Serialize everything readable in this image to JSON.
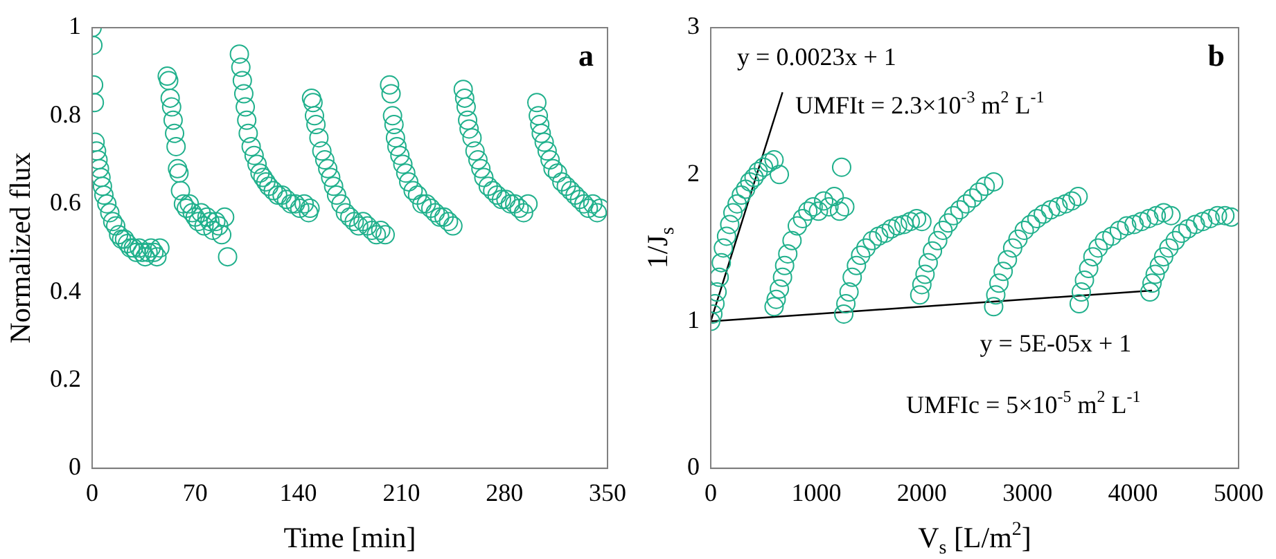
{
  "chart_data": [
    {
      "type": "scatter",
      "xlabel": "Time [min]",
      "ylabel": "Normalized flux",
      "annotations": [
        "a"
      ],
      "xlim": [
        0,
        350
      ],
      "xticks": [
        0,
        70,
        140,
        210,
        280,
        350
      ],
      "ylim": [
        0,
        1
      ],
      "yticks": [
        0,
        0.2,
        0.4,
        0.6,
        0.8,
        1
      ],
      "grid": false,
      "legend": false,
      "marker": "circle",
      "series": [
        {
          "color": "#20b08c",
          "x": [
            0,
            0.5,
            1,
            1.5,
            2,
            3,
            4,
            5,
            6,
            7,
            8,
            10,
            12,
            14,
            16,
            18,
            20,
            22,
            24,
            26,
            28,
            30,
            32,
            34,
            36,
            38,
            40,
            42,
            44,
            46,
            51,
            52,
            53,
            54,
            55,
            56,
            57,
            58,
            59,
            60,
            62,
            64,
            66,
            68,
            70,
            72,
            74,
            76,
            78,
            80,
            82,
            84,
            86,
            88,
            90,
            92,
            100,
            101,
            102,
            103,
            104,
            105,
            106,
            108,
            110,
            112,
            114,
            116,
            118,
            120,
            123,
            126,
            129,
            132,
            135,
            138,
            141,
            144,
            147,
            148,
            149,
            150,
            151,
            152,
            154,
            156,
            158,
            160,
            162,
            164,
            166,
            169,
            172,
            175,
            178,
            181,
            184,
            187,
            190,
            193,
            196,
            199,
            202,
            203,
            204,
            205,
            206,
            207,
            209,
            211,
            213,
            215,
            218,
            221,
            224,
            227,
            230,
            233,
            236,
            239,
            242,
            245,
            252,
            253,
            254,
            255,
            256,
            258,
            260,
            262,
            264,
            266,
            269,
            272,
            275,
            278,
            281,
            284,
            287,
            290,
            293,
            296,
            302,
            303,
            304,
            305,
            307,
            309,
            311,
            313,
            316,
            319,
            322,
            325,
            328,
            331,
            334,
            337,
            340,
            343,
            345
          ],
          "values": [
            1.0,
            0.96,
            0.87,
            0.83,
            0.74,
            0.72,
            0.7,
            0.68,
            0.66,
            0.64,
            0.62,
            0.6,
            0.58,
            0.56,
            0.55,
            0.53,
            0.52,
            0.52,
            0.51,
            0.5,
            0.5,
            0.49,
            0.5,
            0.49,
            0.48,
            0.49,
            0.5,
            0.49,
            0.48,
            0.5,
            0.89,
            0.88,
            0.84,
            0.82,
            0.79,
            0.76,
            0.73,
            0.68,
            0.67,
            0.63,
            0.6,
            0.59,
            0.6,
            0.58,
            0.57,
            0.56,
            0.58,
            0.55,
            0.57,
            0.56,
            0.54,
            0.56,
            0.55,
            0.53,
            0.57,
            0.48,
            0.94,
            0.91,
            0.88,
            0.85,
            0.82,
            0.79,
            0.76,
            0.73,
            0.71,
            0.69,
            0.67,
            0.66,
            0.65,
            0.64,
            0.63,
            0.62,
            0.62,
            0.61,
            0.6,
            0.6,
            0.59,
            0.6,
            0.58,
            0.59,
            0.84,
            0.83,
            0.8,
            0.78,
            0.75,
            0.72,
            0.7,
            0.68,
            0.66,
            0.64,
            0.62,
            0.6,
            0.58,
            0.57,
            0.56,
            0.55,
            0.56,
            0.55,
            0.54,
            0.53,
            0.54,
            0.53,
            0.87,
            0.85,
            0.8,
            0.78,
            0.75,
            0.73,
            0.71,
            0.69,
            0.67,
            0.65,
            0.63,
            0.62,
            0.6,
            0.6,
            0.59,
            0.58,
            0.57,
            0.57,
            0.56,
            0.55,
            0.86,
            0.84,
            0.82,
            0.79,
            0.77,
            0.75,
            0.72,
            0.7,
            0.68,
            0.66,
            0.64,
            0.63,
            0.62,
            0.61,
            0.61,
            0.6,
            0.6,
            0.59,
            0.58,
            0.6,
            0.83,
            0.8,
            0.78,
            0.76,
            0.74,
            0.72,
            0.7,
            0.68,
            0.67,
            0.65,
            0.64,
            0.63,
            0.62,
            0.61,
            0.6,
            0.59,
            0.6,
            0.58,
            0.59
          ]
        }
      ]
    },
    {
      "type": "scatter",
      "xlabel": "V$_{s}$ [L/m$^{2}$]",
      "ylabel": "1/J$_{s}$",
      "annotations": [
        "b",
        "y = 0.0023x + 1",
        "UMFIt = 2.3×10$^{-3}$ m$^{2}$ L$^{-1}$",
        "y = 5E-05x + 1",
        "UMFIc = 5×10$^{-5}$ m$^{2}$ L$^{-1}$"
      ],
      "xlim": [
        0,
        5000
      ],
      "xticks": [
        0,
        1000,
        2000,
        3000,
        4000,
        5000
      ],
      "ylim": [
        0,
        3
      ],
      "yticks": [
        0,
        1,
        2,
        3
      ],
      "grid": false,
      "legend": false,
      "marker": "circle",
      "series": [
        {
          "color": "#20b08c",
          "x": [
            0,
            20,
            40,
            60,
            80,
            100,
            120,
            150,
            180,
            210,
            250,
            290,
            330,
            370,
            410,
            450,
            500,
            550,
            600,
            650,
            600,
            620,
            650,
            680,
            700,
            730,
            770,
            820,
            870,
            920,
            970,
            1020,
            1070,
            1120,
            1170,
            1220,
            1240,
            1270,
            1260,
            1280,
            1310,
            1340,
            1380,
            1420,
            1470,
            1530,
            1590,
            1650,
            1710,
            1770,
            1830,
            1890,
            1950,
            2000,
            1980,
            2000,
            2030,
            2060,
            2100,
            2150,
            2200,
            2250,
            2300,
            2360,
            2420,
            2480,
            2540,
            2600,
            2680,
            2680,
            2700,
            2730,
            2770,
            2810,
            2860,
            2910,
            2970,
            3030,
            3090,
            3150,
            3220,
            3290,
            3360,
            3420,
            3480,
            3490,
            3510,
            3540,
            3580,
            3620,
            3670,
            3730,
            3800,
            3870,
            3940,
            4010,
            4080,
            4150,
            4220,
            4290,
            4360,
            4160,
            4180,
            4210,
            4250,
            4290,
            4340,
            4400,
            4460,
            4520,
            4590,
            4660,
            4730,
            4800,
            4870,
            4930
          ],
          "values": [
            1.0,
            1.05,
            1.12,
            1.2,
            1.3,
            1.4,
            1.5,
            1.58,
            1.66,
            1.74,
            1.8,
            1.86,
            1.9,
            1.95,
            1.98,
            2.02,
            2.05,
            2.08,
            2.1,
            2.0,
            1.1,
            1.15,
            1.22,
            1.3,
            1.38,
            1.46,
            1.55,
            1.65,
            1.7,
            1.75,
            1.78,
            1.75,
            1.82,
            1.78,
            1.85,
            1.75,
            2.05,
            1.78,
            1.05,
            1.12,
            1.2,
            1.3,
            1.38,
            1.45,
            1.5,
            1.55,
            1.58,
            1.6,
            1.63,
            1.65,
            1.66,
            1.68,
            1.7,
            1.68,
            1.18,
            1.25,
            1.32,
            1.4,
            1.48,
            1.55,
            1.62,
            1.67,
            1.72,
            1.76,
            1.8,
            1.84,
            1.88,
            1.92,
            1.95,
            1.1,
            1.18,
            1.26,
            1.34,
            1.42,
            1.5,
            1.56,
            1.62,
            1.66,
            1.7,
            1.73,
            1.76,
            1.78,
            1.8,
            1.82,
            1.85,
            1.12,
            1.2,
            1.28,
            1.36,
            1.44,
            1.5,
            1.55,
            1.58,
            1.62,
            1.65,
            1.66,
            1.68,
            1.7,
            1.72,
            1.74,
            1.72,
            1.2,
            1.26,
            1.32,
            1.38,
            1.44,
            1.5,
            1.55,
            1.6,
            1.63,
            1.66,
            1.68,
            1.7,
            1.72,
            1.72,
            1.71
          ]
        },
        {
          "type": "line",
          "color": "#000000",
          "marker": "none",
          "x": [
            0,
            680
          ],
          "values": [
            1,
            2.56
          ]
        },
        {
          "type": "line",
          "color": "#000000",
          "marker": "none",
          "x": [
            0,
            4180
          ],
          "values": [
            1,
            1.21
          ]
        }
      ]
    }
  ]
}
